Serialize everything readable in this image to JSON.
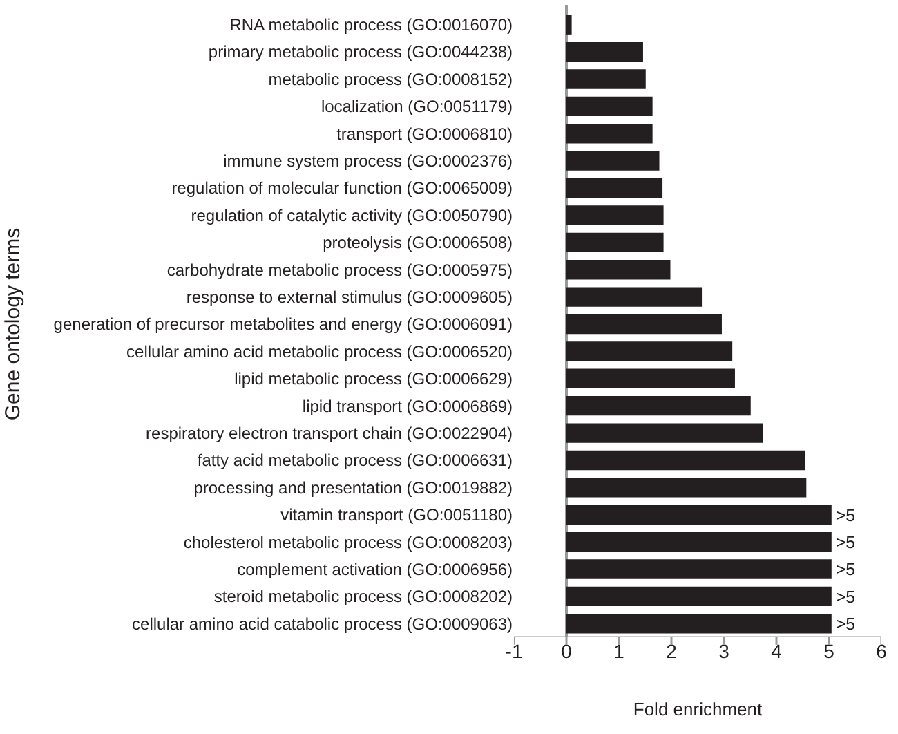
{
  "chart_data": {
    "type": "bar",
    "orientation": "horizontal",
    "xlabel": "Fold enrichment",
    "ylabel": "Gene ontology terms",
    "categories": [
      "RNA metabolic process (GO:0016070)",
      "primary metabolic process (GO:0044238)",
      "metabolic process (GO:0008152)",
      "localization (GO:0051179)",
      "transport (GO:0006810)",
      "immune system process (GO:0002376)",
      "regulation of molecular function (GO:0065009)",
      "regulation of catalytic activity (GO:0050790)",
      "proteolysis (GO:0006508)",
      "carbohydrate metabolic process (GO:0005975)",
      "response to external stimulus (GO:0009605)",
      "generation of precursor metabolites and energy (GO:0006091)",
      "cellular amino acid metabolic process (GO:0006520)",
      "lipid metabolic process (GO:0006629)",
      "lipid transport (GO:0006869)",
      "respiratory electron transport chain (GO:0022904)",
      "fatty acid metabolic process (GO:0006631)",
      "processing and presentation (GO:0019882)",
      "vitamin transport (GO:0051180)",
      "cholesterol metabolic process (GO:0008203)",
      "complement activation (GO:0006956)",
      "steroid metabolic process (GO:0008202)",
      "cellular amino acid catabolic process (GO:0009063)"
    ],
    "values": [
      0.1,
      1.46,
      1.51,
      1.64,
      1.64,
      1.77,
      1.83,
      1.85,
      1.85,
      1.98,
      2.58,
      2.96,
      3.16,
      3.21,
      3.51,
      3.75,
      4.55,
      4.57,
      5.05,
      5.05,
      5.05,
      5.05,
      5.05
    ],
    "value_labels": [
      null,
      null,
      null,
      null,
      null,
      null,
      null,
      null,
      null,
      null,
      null,
      null,
      null,
      null,
      null,
      null,
      null,
      null,
      ">5",
      ">5",
      ">5",
      ">5",
      ">5"
    ],
    "color": "#231f20",
    "xlim": [
      -1,
      6
    ],
    "xticks": [
      -1,
      0,
      1,
      2,
      3,
      4,
      5,
      6
    ]
  }
}
